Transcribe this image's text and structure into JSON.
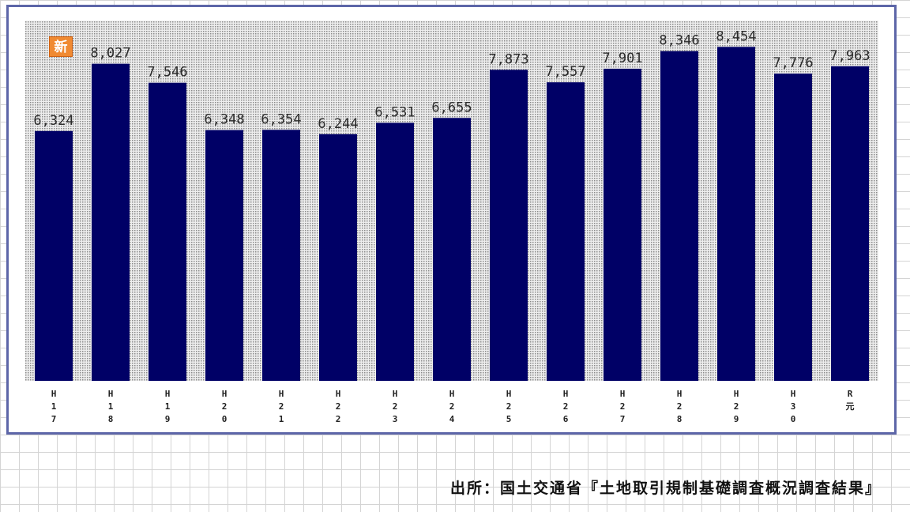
{
  "chart_data": {
    "type": "bar",
    "categories": [
      "H17",
      "H18",
      "H19",
      "H20",
      "H21",
      "H22",
      "H23",
      "H24",
      "H25",
      "H26",
      "H27",
      "H28",
      "H29",
      "H30",
      "R元"
    ],
    "tick_labels": [
      [
        "H",
        "1",
        "7"
      ],
      [
        "H",
        "1",
        "8"
      ],
      [
        "H",
        "1",
        "9"
      ],
      [
        "H",
        "2",
        "0"
      ],
      [
        "H",
        "2",
        "1"
      ],
      [
        "H",
        "2",
        "2"
      ],
      [
        "H",
        "2",
        "3"
      ],
      [
        "H",
        "2",
        "4"
      ],
      [
        "H",
        "2",
        "5"
      ],
      [
        "H",
        "2",
        "6"
      ],
      [
        "H",
        "2",
        "7"
      ],
      [
        "H",
        "2",
        "8"
      ],
      [
        "H",
        "2",
        "9"
      ],
      [
        "H",
        "3",
        "0"
      ],
      [
        "R",
        "元"
      ]
    ],
    "values": [
      6324,
      8027,
      7546,
      6348,
      6354,
      6244,
      6531,
      6655,
      7873,
      7557,
      7901,
      8346,
      8454,
      7776,
      7963
    ],
    "value_labels": [
      "6,324",
      "8,027",
      "7,546",
      "6,348",
      "6,354",
      "6,244",
      "6,531",
      "6,655",
      "7,873",
      "7,557",
      "7,901",
      "8,346",
      "8,454",
      "7,776",
      "7,963"
    ],
    "bar_color": "#000066",
    "plot_background": "dotted gray",
    "grid": false,
    "ylim": [
      0,
      8800
    ],
    "badge": "新",
    "source": "出所：国土交通省『土地取引規制基礎調査概況調査結果』"
  }
}
